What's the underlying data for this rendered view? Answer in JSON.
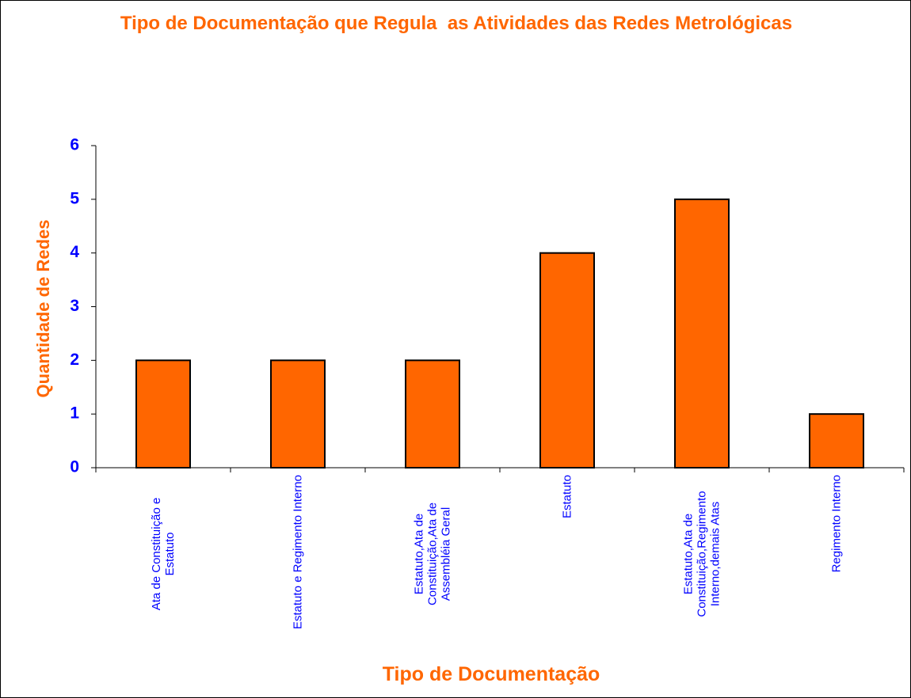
{
  "chart_data": {
    "type": "bar",
    "title": "Tipo de Documentação que Regula  as Atividades das Redes Metrológicas",
    "x_label": "Tipo de Documentação",
    "y_label": "Quantidade de Redes",
    "categories": [
      "Ata de Constituição e Estatuto",
      "Estatuto e Regimento Interno",
      "Estatuto,Ata de Constituição,Ata de Assembléia Geral",
      "Estatuto",
      "Estatuto,Ata de Constituição,Regimento Interno,demais Atas",
      "Regimento Interno"
    ],
    "values": [
      2,
      2,
      2,
      4,
      5,
      1
    ],
    "color": "#ff6600",
    "ylim": [
      0,
      6
    ],
    "yticks": [
      0,
      1,
      2,
      3,
      4,
      5,
      6
    ],
    "grid": false
  }
}
